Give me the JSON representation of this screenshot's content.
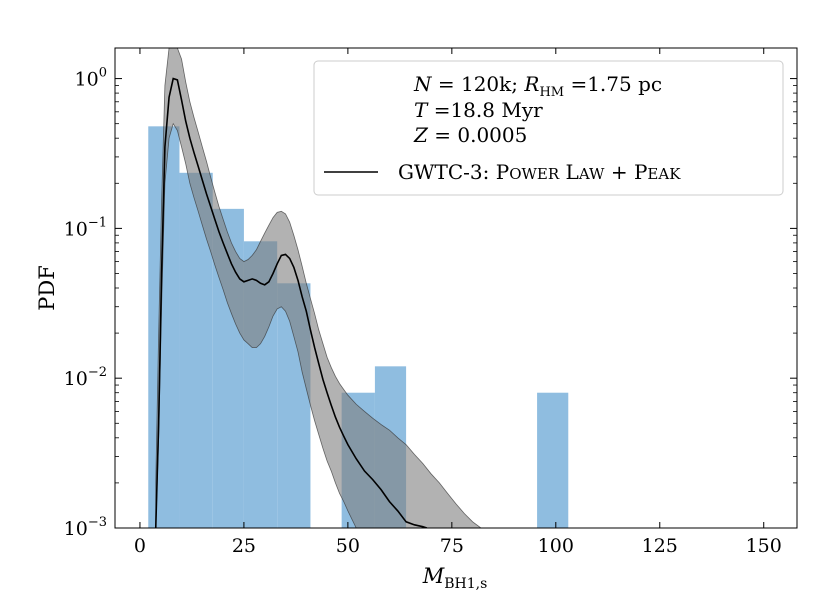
{
  "chart_data": {
    "type": "bar",
    "yscale": "log",
    "xlim": [
      -6,
      158
    ],
    "ylim": [
      0.001,
      1.6
    ],
    "grid": false,
    "xlabel": "M",
    "xlabel_sub": "BH1,s",
    "ylabel": "PDF",
    "xticks": [
      0,
      25,
      50,
      75,
      100,
      125,
      150
    ],
    "xtick_labels": [
      "0",
      "25",
      "50",
      "75",
      "100",
      "125",
      "150"
    ],
    "yticks": [
      0.001,
      0.01,
      0.1,
      1.0
    ],
    "ytick_labels": [
      {
        "base": "10",
        "exp": "−3"
      },
      {
        "base": "10",
        "exp": "−2"
      },
      {
        "base": "10",
        "exp": "−1"
      },
      {
        "base": "10",
        "exp": "0"
      }
    ],
    "legend_position": "top-right",
    "annotation_lines": [
      "N = 120k; R_HM =1.75 pc",
      "T =18.8 Myr",
      "Z = 0.0005"
    ],
    "histogram": {
      "color": "#8fbde0",
      "bins": [
        {
          "x0": 2,
          "x1": 9.5,
          "value": 0.48
        },
        {
          "x0": 9.5,
          "x1": 17.5,
          "value": 0.235
        },
        {
          "x0": 17.5,
          "x1": 25,
          "value": 0.135
        },
        {
          "x0": 25,
          "x1": 33,
          "value": 0.082
        },
        {
          "x0": 33,
          "x1": 41,
          "value": 0.043
        },
        {
          "x0": 41,
          "x1": 48.5,
          "value": 0.0005
        },
        {
          "x0": 48.5,
          "x1": 56.5,
          "value": 0.008
        },
        {
          "x0": 56.5,
          "x1": 64,
          "value": 0.012
        },
        {
          "x0": 64,
          "x1": 95.5,
          "value": 0.0005
        },
        {
          "x0": 95.5,
          "x1": 103,
          "value": 0.008
        }
      ]
    },
    "series": [
      {
        "name": "GWTC-3: Power Law + Peak",
        "color": "#000000",
        "x": [
          3.8,
          4.5,
          5.2,
          6,
          7,
          8,
          9,
          10,
          11,
          12,
          13,
          14,
          15,
          16,
          17,
          18,
          19,
          20,
          21,
          22,
          23,
          24,
          25,
          26,
          27,
          28,
          29,
          30,
          31,
          32,
          33,
          34,
          35,
          36,
          37,
          38,
          39,
          40,
          41,
          42,
          43,
          44,
          45,
          46,
          47,
          48,
          49,
          50,
          52,
          54,
          56,
          58,
          60,
          62,
          64,
          66,
          68,
          69
        ],
        "y": [
          0.001,
          0.005,
          0.05,
          0.35,
          0.75,
          1.0,
          0.98,
          0.72,
          0.52,
          0.4,
          0.32,
          0.26,
          0.21,
          0.17,
          0.14,
          0.115,
          0.095,
          0.08,
          0.068,
          0.058,
          0.051,
          0.046,
          0.044,
          0.045,
          0.046,
          0.045,
          0.043,
          0.042,
          0.044,
          0.05,
          0.058,
          0.066,
          0.067,
          0.063,
          0.055,
          0.045,
          0.035,
          0.028,
          0.021,
          0.016,
          0.0125,
          0.0098,
          0.008,
          0.0066,
          0.0055,
          0.0047,
          0.0041,
          0.0036,
          0.0029,
          0.0024,
          0.0021,
          0.0018,
          0.0015,
          0.0013,
          0.0011,
          0.00105,
          0.00102,
          0.001
        ],
        "band": {
          "color": "#7f7f7f",
          "x": [
            3.8,
            4.5,
            5.2,
            6,
            7,
            8,
            9,
            10,
            11,
            12,
            13,
            14,
            15,
            16,
            17,
            18,
            19,
            20,
            21,
            22,
            23,
            24,
            25,
            26,
            27,
            28,
            29,
            30,
            31,
            32,
            33,
            34,
            35,
            36,
            37,
            38,
            39,
            40,
            41,
            42,
            43,
            44,
            45,
            46,
            47,
            48,
            49,
            50,
            52,
            54,
            56,
            58,
            60,
            62,
            64,
            66,
            68,
            70,
            72,
            74,
            76,
            78,
            80,
            82,
            83
          ],
          "lower": [
            0.001,
            0.004,
            0.03,
            0.2,
            0.4,
            0.5,
            0.45,
            0.35,
            0.27,
            0.2,
            0.16,
            0.13,
            0.105,
            0.085,
            0.07,
            0.057,
            0.047,
            0.039,
            0.032,
            0.027,
            0.023,
            0.02,
            0.018,
            0.017,
            0.016,
            0.016,
            0.017,
            0.019,
            0.022,
            0.026,
            0.029,
            0.03,
            0.028,
            0.024,
            0.019,
            0.015,
            0.011,
            0.0085,
            0.0066,
            0.0052,
            0.0042,
            0.0034,
            0.0028,
            0.0024,
            0.002,
            0.0017,
            0.0015,
            0.0013,
            0.001,
            0.001,
            0.001,
            0.001,
            0.001,
            0.001,
            0.001,
            0.001,
            0.001,
            0.001,
            0.001,
            0.001,
            0.001,
            0.001,
            0.001,
            0.001,
            0.001
          ],
          "upper": [
            0.002,
            0.02,
            0.15,
            0.9,
            1.6,
            1.6,
            1.6,
            1.35,
            0.95,
            0.7,
            0.55,
            0.44,
            0.35,
            0.28,
            0.22,
            0.175,
            0.14,
            0.115,
            0.095,
            0.08,
            0.07,
            0.063,
            0.06,
            0.062,
            0.066,
            0.072,
            0.082,
            0.093,
            0.105,
            0.118,
            0.128,
            0.13,
            0.125,
            0.11,
            0.09,
            0.072,
            0.056,
            0.043,
            0.034,
            0.027,
            0.021,
            0.017,
            0.0138,
            0.0118,
            0.0103,
            0.0092,
            0.0084,
            0.0077,
            0.0067,
            0.006,
            0.0054,
            0.0049,
            0.0045,
            0.004,
            0.0036,
            0.0031,
            0.0027,
            0.0023,
            0.002,
            0.0017,
            0.00145,
            0.00125,
            0.0011,
            0.001,
            0.001
          ]
        }
      }
    ]
  }
}
